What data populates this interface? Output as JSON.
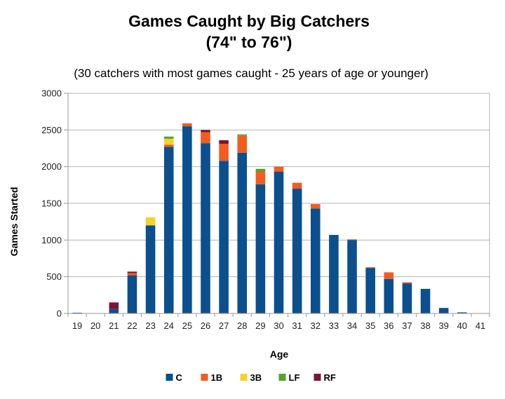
{
  "chart_data": {
    "type": "bar",
    "stacked": true,
    "title": "Games Caught by Big Catchers",
    "title_line2": "(74\" to 76\")",
    "subtitle": "(30 catchers with most games caught - 25 years of age or younger)",
    "xlabel": "Age",
    "ylabel": "Games Started",
    "ylim": [
      0,
      3000
    ],
    "yticks": [
      0,
      500,
      1000,
      1500,
      2000,
      2500,
      3000
    ],
    "grid": true,
    "legend_position": "bottom",
    "categories": [
      "19",
      "20",
      "21",
      "22",
      "23",
      "24",
      "25",
      "26",
      "27",
      "28",
      "29",
      "30",
      "31",
      "32",
      "33",
      "34",
      "35",
      "36",
      "37",
      "38",
      "39",
      "40",
      "41"
    ],
    "series": [
      {
        "name": "C",
        "color": "#0b4f8f",
        "values": [
          10,
          5,
          60,
          520,
          1200,
          2270,
          2550,
          2320,
          2080,
          2190,
          1760,
          1930,
          1700,
          1430,
          1070,
          1000,
          620,
          470,
          410,
          335,
          75,
          15,
          3
        ]
      },
      {
        "name": "1B",
        "color": "#f25c1e",
        "values": [
          0,
          0,
          0,
          30,
          0,
          30,
          40,
          150,
          230,
          230,
          170,
          70,
          80,
          60,
          0,
          10,
          10,
          90,
          15,
          0,
          0,
          0,
          0
        ]
      },
      {
        "name": "3B",
        "color": "#f7d22b",
        "values": [
          0,
          0,
          0,
          0,
          110,
          80,
          0,
          0,
          0,
          0,
          0,
          0,
          0,
          0,
          0,
          0,
          0,
          0,
          0,
          0,
          0,
          0,
          0
        ]
      },
      {
        "name": "LF",
        "color": "#5aa02c",
        "values": [
          0,
          0,
          0,
          0,
          0,
          30,
          0,
          0,
          0,
          20,
          40,
          0,
          0,
          0,
          0,
          0,
          0,
          0,
          0,
          0,
          0,
          0,
          0
        ]
      },
      {
        "name": "RF",
        "color": "#7a1534",
        "values": [
          0,
          0,
          90,
          20,
          0,
          0,
          0,
          30,
          50,
          0,
          0,
          0,
          0,
          0,
          0,
          0,
          0,
          0,
          0,
          0,
          0,
          0,
          0
        ]
      }
    ]
  }
}
